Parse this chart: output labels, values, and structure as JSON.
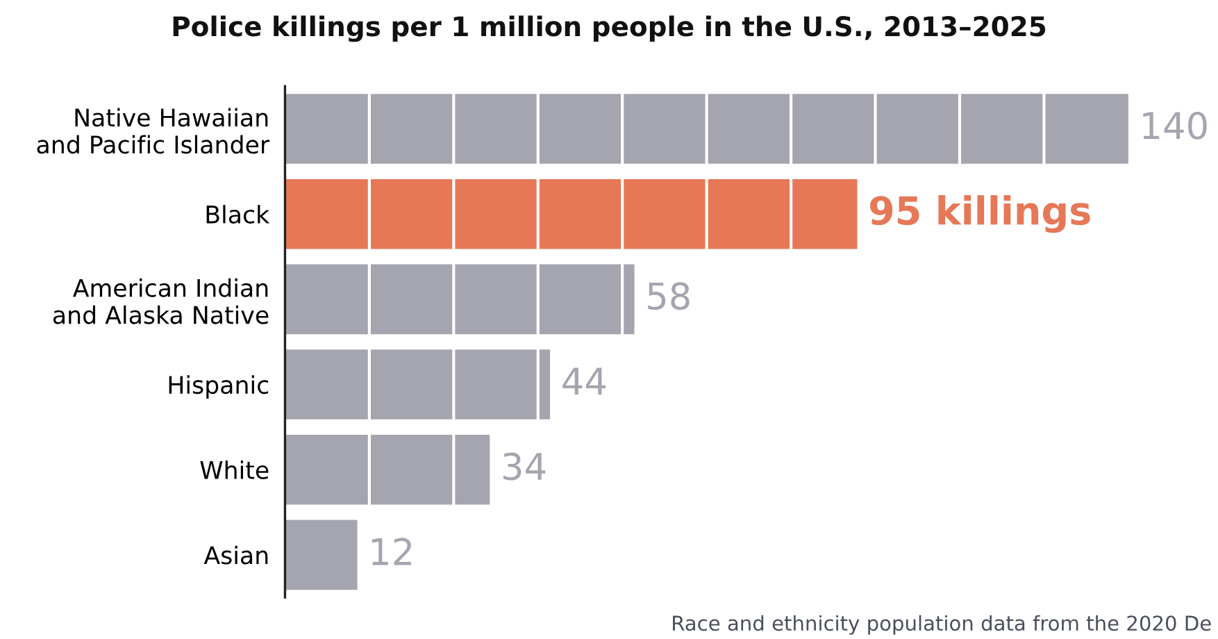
{
  "chart_data": {
    "type": "bar",
    "orientation": "horizontal",
    "title": "Police killings per 1 million people in the U.S., 2013–2025",
    "categories": [
      "Native Hawaiian\nand Pacific Islander",
      "Black",
      "American Indian\nand Alaska Native",
      "Hispanic",
      "White",
      "Asian"
    ],
    "values": [
      140,
      95,
      58,
      44,
      34,
      12
    ],
    "colors": [
      "#a5a5b0",
      "#e67857",
      "#a5a5b0",
      "#a5a5b0",
      "#a5a5b0",
      "#a5a5b0"
    ],
    "value_labels": [
      "140",
      "95 killings",
      "58",
      "44",
      "34",
      "12"
    ],
    "xticks": [
      {
        "value": 14,
        "label": null
      },
      {
        "value": 28,
        "label": null
      },
      {
        "value": 42,
        "label": null
      },
      {
        "value": 56,
        "label": null
      },
      {
        "value": 70,
        "label": null
      },
      {
        "value": 84,
        "label": null
      },
      {
        "value": 98,
        "label": null
      },
      {
        "value": 112,
        "label": null
      },
      {
        "value": 126,
        "label": null
      }
    ],
    "grid": "x",
    "tick_labels": "y",
    "annotations": [
      "Race and ethnicity population data from the 2020 De"
    ]
  }
}
